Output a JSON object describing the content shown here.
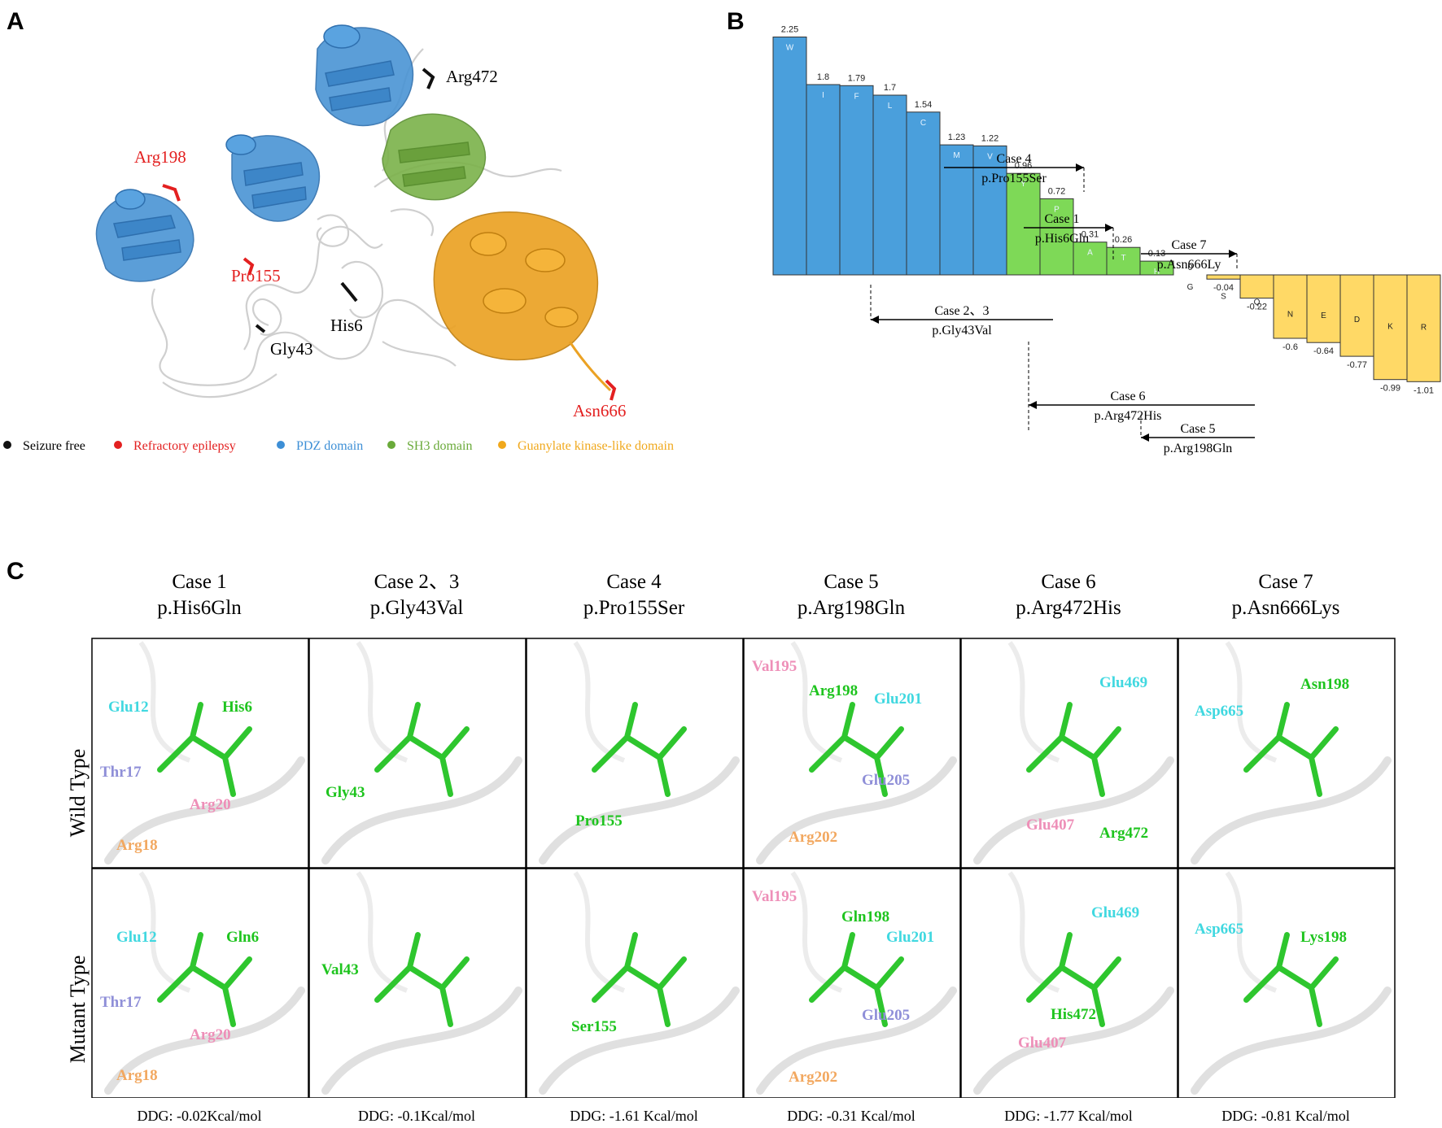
{
  "panels": {
    "a": "A",
    "b": "B",
    "c": "C"
  },
  "panelA": {
    "labels": [
      {
        "id": "arg472",
        "text": "Arg472",
        "color": "#000000"
      },
      {
        "id": "arg198",
        "text": "Arg198",
        "color": "#e32020"
      },
      {
        "id": "pro155",
        "text": "Pro155",
        "color": "#e32020"
      },
      {
        "id": "his6",
        "text": "His6",
        "color": "#000000"
      },
      {
        "id": "gly43",
        "text": "Gly43",
        "color": "#000000"
      },
      {
        "id": "asn666",
        "text": "Asn666",
        "color": "#e32020"
      }
    ],
    "legend": [
      {
        "label": "Seizure free",
        "color": "#111111"
      },
      {
        "label": "Refractory epilepsy",
        "color": "#e32020"
      },
      {
        "label": "PDZ domain",
        "color": "#3d8fd6"
      },
      {
        "label": "SH3 domain",
        "color": "#6aaa3a"
      },
      {
        "label": "Guanylate kinase-like domain",
        "color": "#f0a81c"
      }
    ],
    "colors": {
      "pdz": "#4a94d4",
      "sh3": "#7bb24a",
      "gk": "#eba224",
      "coil": "#cfcfcf"
    }
  },
  "chart_data": {
    "type": "bar",
    "categories": [
      "W",
      "I",
      "F",
      "L",
      "C",
      "M",
      "V",
      "Y",
      "P",
      "A",
      "T",
      "H",
      "G",
      "S",
      "Q",
      "N",
      "E",
      "D",
      "K",
      "R"
    ],
    "values": [
      2.25,
      1.8,
      1.79,
      1.7,
      1.54,
      1.23,
      1.22,
      0.96,
      0.72,
      0.31,
      0.26,
      0.13,
      0,
      -0.04,
      -0.22,
      -0.6,
      -0.64,
      -0.77,
      -0.99,
      -1.01
    ],
    "value_labels": [
      "2.25",
      "1.8",
      "1.79",
      "1.7",
      "1.54",
      "1.23",
      "1.22",
      "0.96",
      "0.72",
      "0.31",
      "0.26",
      "0.13",
      "0",
      "-0.04",
      "-0.22",
      "-0.6",
      "-0.64",
      "-0.77",
      "-0.99",
      "-1.01"
    ],
    "bar_colors": [
      "#4a9fdc",
      "#4a9fdc",
      "#4a9fdc",
      "#4a9fdc",
      "#4a9fdc",
      "#4a9fdc",
      "#4a9fdc",
      "#7ed957",
      "#7ed957",
      "#7ed957",
      "#7ed957",
      "#7ed957",
      "#ffffff",
      "#ffd966",
      "#ffd966",
      "#ffd966",
      "#ffd966",
      "#ffd966",
      "#ffd966",
      "#ffd966"
    ],
    "ylim": [
      -1.2,
      2.25
    ],
    "annotations": [
      {
        "case": "Case 4",
        "mutation": "p.Pro155Ser"
      },
      {
        "case": "Case 1",
        "mutation": "p.His6Gln"
      },
      {
        "case": "Case 7",
        "mutation": "p.Asn666Ly"
      },
      {
        "case": "Case 2、3",
        "mutation": "p.Gly43Val"
      },
      {
        "case": "Case 6",
        "mutation": "p.Arg472His"
      },
      {
        "case": "Case 5",
        "mutation": "p.Arg198Gln"
      }
    ]
  },
  "panelC": {
    "rows": [
      "Wild Type",
      "Mutant Type"
    ],
    "cases": [
      {
        "title": "Case 1",
        "mutation": "p.His6Gln",
        "ddg": "DDG: -0.02Kcal/mol",
        "wt": [
          {
            "t": "Glu12",
            "c": "#40d8e0"
          },
          {
            "t": "His6",
            "c": "#1ec41e"
          },
          {
            "t": "Thr17",
            "c": "#8f8fd8"
          },
          {
            "t": "Arg18",
            "c": "#f2a860"
          },
          {
            "t": "Arg20",
            "c": "#ee8fb8"
          }
        ],
        "mt": [
          {
            "t": "Glu12",
            "c": "#40d8e0"
          },
          {
            "t": "Gln6",
            "c": "#1ec41e"
          },
          {
            "t": "Thr17",
            "c": "#8f8fd8"
          },
          {
            "t": "Arg18",
            "c": "#f2a860"
          },
          {
            "t": "Arg20",
            "c": "#ee8fb8"
          }
        ]
      },
      {
        "title": "Case 2、3",
        "mutation": "p.Gly43Val",
        "ddg": "DDG: -0.1Kcal/mol",
        "wt": [
          {
            "t": "Gly43",
            "c": "#1ec41e"
          }
        ],
        "mt": [
          {
            "t": "Val43",
            "c": "#1ec41e"
          }
        ]
      },
      {
        "title": "Case 4",
        "mutation": "p.Pro155Ser",
        "ddg": "DDG: -1.61 Kcal/mol",
        "wt": [
          {
            "t": "Pro155",
            "c": "#1ec41e"
          }
        ],
        "mt": [
          {
            "t": "Ser155",
            "c": "#1ec41e"
          }
        ]
      },
      {
        "title": "Case 5",
        "mutation": "p.Arg198Gln",
        "ddg": "DDG: -0.31 Kcal/mol",
        "wt": [
          {
            "t": "Val195",
            "c": "#ee8fb8"
          },
          {
            "t": "Arg198",
            "c": "#1ec41e"
          },
          {
            "t": "Glu201",
            "c": "#40d8e0"
          },
          {
            "t": "Glu205",
            "c": "#8f8fd8"
          },
          {
            "t": "Arg202",
            "c": "#f2a860"
          }
        ],
        "mt": [
          {
            "t": "Val195",
            "c": "#ee8fb8"
          },
          {
            "t": "Gln198",
            "c": "#1ec41e"
          },
          {
            "t": "Glu201",
            "c": "#40d8e0"
          },
          {
            "t": "Glu205",
            "c": "#8f8fd8"
          },
          {
            "t": "Arg202",
            "c": "#f2a860"
          }
        ]
      },
      {
        "title": "Case 6",
        "mutation": "p.Arg472His",
        "ddg": "DDG: -1.77 Kcal/mol",
        "wt": [
          {
            "t": "Glu469",
            "c": "#40d8e0"
          },
          {
            "t": "Glu407",
            "c": "#ee8fb8"
          },
          {
            "t": "Arg472",
            "c": "#1ec41e"
          }
        ],
        "mt": [
          {
            "t": "Glu469",
            "c": "#40d8e0"
          },
          {
            "t": "His472",
            "c": "#1ec41e"
          },
          {
            "t": "Glu407",
            "c": "#ee8fb8"
          }
        ]
      },
      {
        "title": "Case 7",
        "mutation": "p.Asn666Lys",
        "ddg": "DDG: -0.81 Kcal/mol",
        "wt": [
          {
            "t": "Asp665",
            "c": "#40d8e0"
          },
          {
            "t": "Asn198",
            "c": "#1ec41e"
          }
        ],
        "mt": [
          {
            "t": "Asp665",
            "c": "#40d8e0"
          },
          {
            "t": "Lys198",
            "c": "#1ec41e"
          }
        ]
      }
    ]
  }
}
